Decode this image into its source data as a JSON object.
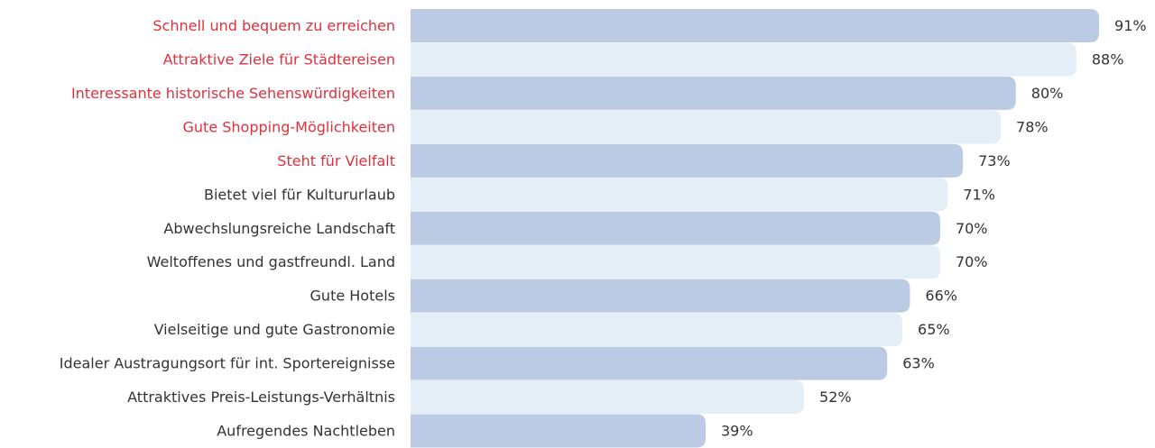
{
  "chart_data": {
    "type": "hbar",
    "categories": [
      "Schnell und bequem zu erreichen",
      "Attraktive Ziele für Städtereisen",
      "Interessante historische Sehenswürdigkeiten",
      "Gute Shopping-Möglichkeiten",
      "Steht für Vielfalt",
      "Bietet viel für Kultururlaub",
      "Abwechslungsreiche Landschaft",
      "Weltoffenes und gastfreundl. Land",
      "Gute Hotels",
      "Vielseitige und gute Gastronomie",
      "Idealer Austragungsort für int. Sportereignisse",
      "Attraktives Preis-Leistungs-Verhältnis",
      "Aufregendes Nachtleben"
    ],
    "values": [
      91,
      88,
      80,
      78,
      73,
      71,
      70,
      70,
      66,
      65,
      63,
      52,
      39
    ],
    "value_labels": [
      "91%",
      "88%",
      "80%",
      "78%",
      "73%",
      "71%",
      "70%",
      "70%",
      "66%",
      "65%",
      "63%",
      "52%",
      "39%"
    ],
    "colors": [
      "#bccbe4",
      "#e4eef6",
      "#bccbe4",
      "#e4eef6",
      "#bccbe4",
      "#e4eef6",
      "#bccbe4",
      "#e4eef6",
      "#bccbe4",
      "#e4eef6",
      "#bccbe4",
      "#e4eef6",
      "#bccbe4"
    ],
    "label_colors": [
      "#e0303c",
      "#e0303c",
      "#e0303c",
      "#e0303c",
      "#e0303c",
      "#333333",
      "#333333",
      "#333333",
      "#333333",
      "#333333",
      "#333333",
      "#333333",
      "#333333"
    ]
  }
}
